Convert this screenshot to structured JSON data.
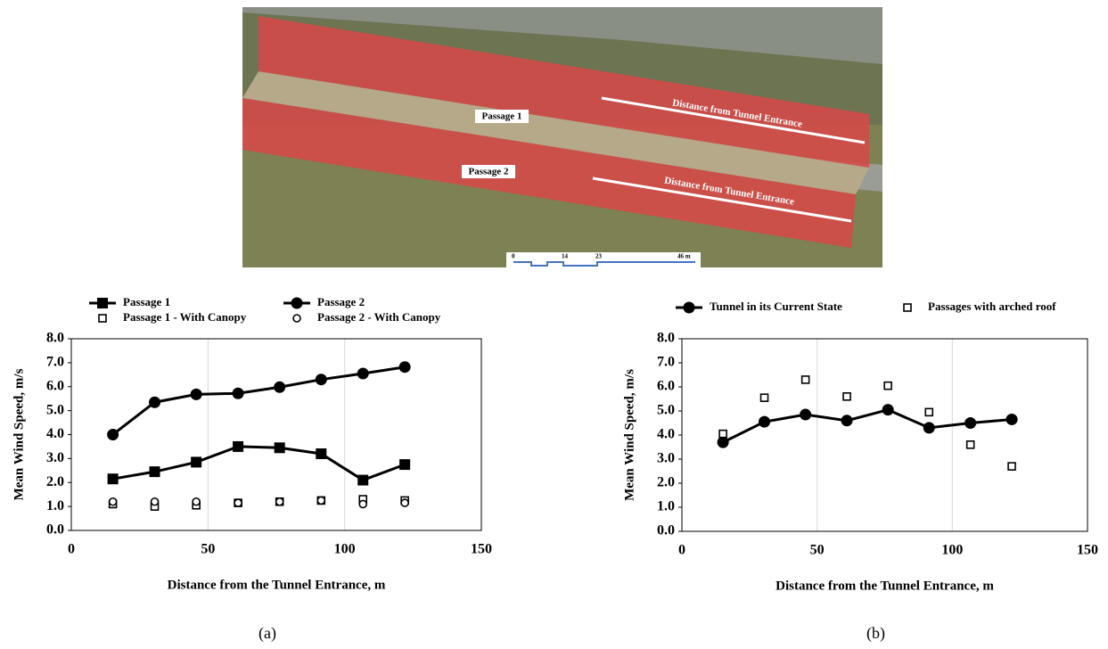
{
  "image": {
    "labels": [
      "Passage 1",
      "Passage 2",
      "Distance from Tunnel Entrance",
      "Distance from Tunnel Entrance"
    ],
    "scale": [
      "0",
      "14",
      "23",
      "46 m"
    ]
  },
  "chart_data": [
    {
      "type": "line",
      "caption": "(a)",
      "xlabel": "Distance from the Tunnel Entrance, m",
      "ylabel": "Mean Wind Speed, m/s",
      "xlim": [
        0,
        150
      ],
      "xticks": [
        0,
        50,
        100,
        150
      ],
      "ylim": [
        0,
        8
      ],
      "yticks": [
        {
          "value": 0,
          "label": "0.0"
        },
        {
          "value": 1,
          "label": "1.0"
        },
        {
          "value": 2,
          "label": "2.0"
        },
        {
          "value": 3,
          "label": "3.0"
        },
        {
          "value": 4,
          "label": "4.0"
        },
        {
          "value": 5,
          "label": "5.0"
        },
        {
          "value": 6,
          "label": "6.0"
        },
        {
          "value": 7,
          "label": "7.0"
        },
        {
          "value": 8,
          "label": "8.0"
        }
      ],
      "grid": "x",
      "legend": "top",
      "x": [
        15.2,
        30.5,
        45.7,
        61,
        76.2,
        91.4,
        106.7,
        122
      ],
      "series": [
        {
          "name": "Passage 1",
          "color": "#000000",
          "marker": "square",
          "line": true,
          "values": [
            2.15,
            2.45,
            2.85,
            3.5,
            3.45,
            3.2,
            2.1,
            2.75
          ]
        },
        {
          "name": "Passage 2",
          "color": "#000000",
          "marker": "circle",
          "line": true,
          "values": [
            4.0,
            5.35,
            5.68,
            5.72,
            5.98,
            6.3,
            6.55,
            6.82
          ]
        },
        {
          "name": "Passage 1 - With Canopy",
          "color": "#000000",
          "marker": "open-square",
          "line": false,
          "values": [
            1.1,
            1.0,
            1.05,
            1.15,
            1.2,
            1.25,
            1.3,
            1.25
          ]
        },
        {
          "name": "Passage 2 - With Canopy",
          "color": "#000000",
          "marker": "open-circle",
          "line": false,
          "values": [
            1.2,
            1.2,
            1.2,
            1.15,
            1.2,
            1.25,
            1.1,
            1.15
          ]
        }
      ]
    },
    {
      "type": "line",
      "caption": "(b)",
      "xlabel": "Distance from the Tunnel Entrance, m",
      "ylabel": "Mean Wind Speed, m/s",
      "xlim": [
        0,
        150
      ],
      "xticks": [
        0,
        50,
        100,
        150
      ],
      "ylim": [
        0,
        8
      ],
      "yticks": [
        {
          "value": 0,
          "label": "0.0"
        },
        {
          "value": 1,
          "label": "1.0"
        },
        {
          "value": 2,
          "label": "2.0"
        },
        {
          "value": 3,
          "label": "3.0"
        },
        {
          "value": 4,
          "label": "4.0"
        },
        {
          "value": 5,
          "label": "5.0"
        },
        {
          "value": 6,
          "label": "6.0"
        },
        {
          "value": 7,
          "label": "7.0"
        },
        {
          "value": 8,
          "label": "8.0"
        }
      ],
      "grid": "x",
      "legend": "top",
      "x": [
        15.2,
        30.5,
        45.7,
        61,
        76.2,
        91.4,
        106.7,
        122
      ],
      "series": [
        {
          "name": "Tunnel in its Current State",
          "color": "#000000",
          "marker": "circle",
          "line": true,
          "values": [
            3.7,
            4.55,
            4.85,
            4.6,
            5.05,
            4.3,
            4.5,
            4.65
          ]
        },
        {
          "name": "Passages with arched roof",
          "color": "#000000",
          "marker": "open-square",
          "line": false,
          "values": [
            4.05,
            5.55,
            6.3,
            5.6,
            6.05,
            4.95,
            3.6,
            2.7
          ]
        }
      ]
    }
  ]
}
